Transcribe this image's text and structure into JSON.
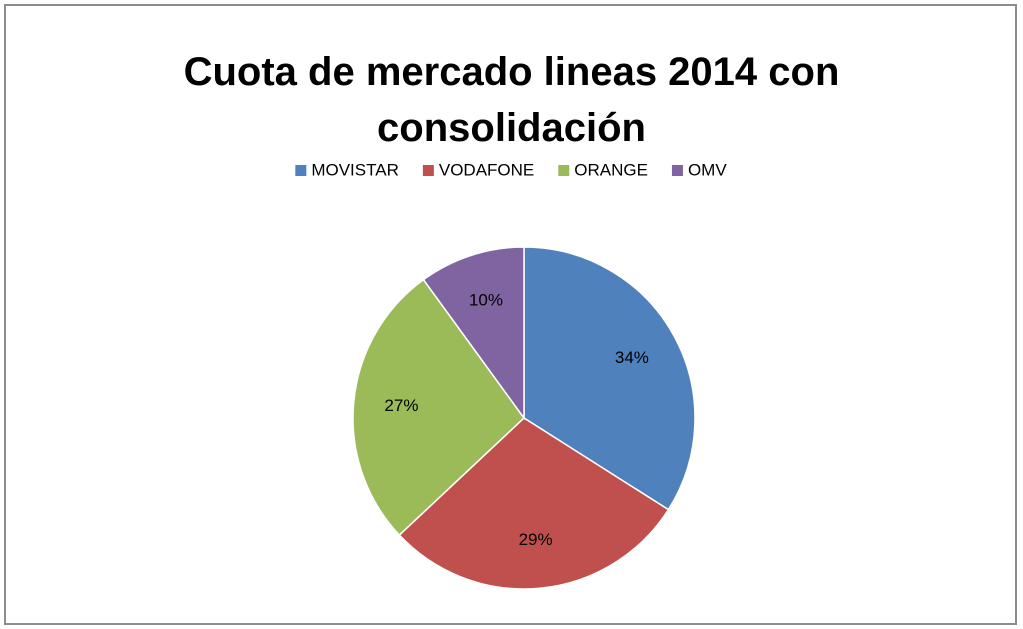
{
  "chart_data": {
    "type": "pie",
    "title": "Cuota de mercado lineas 2014 con consolidación",
    "categories": [
      "MOVISTAR",
      "VODAFONE",
      "ORANGE",
      "OMV"
    ],
    "values": [
      34,
      29,
      27,
      10
    ],
    "value_labels": [
      "34%",
      "29%",
      "27%",
      "10%"
    ],
    "colors": [
      "#4f81bd",
      "#c0504d",
      "#9bbb59",
      "#8064a2"
    ],
    "legend": "top"
  }
}
